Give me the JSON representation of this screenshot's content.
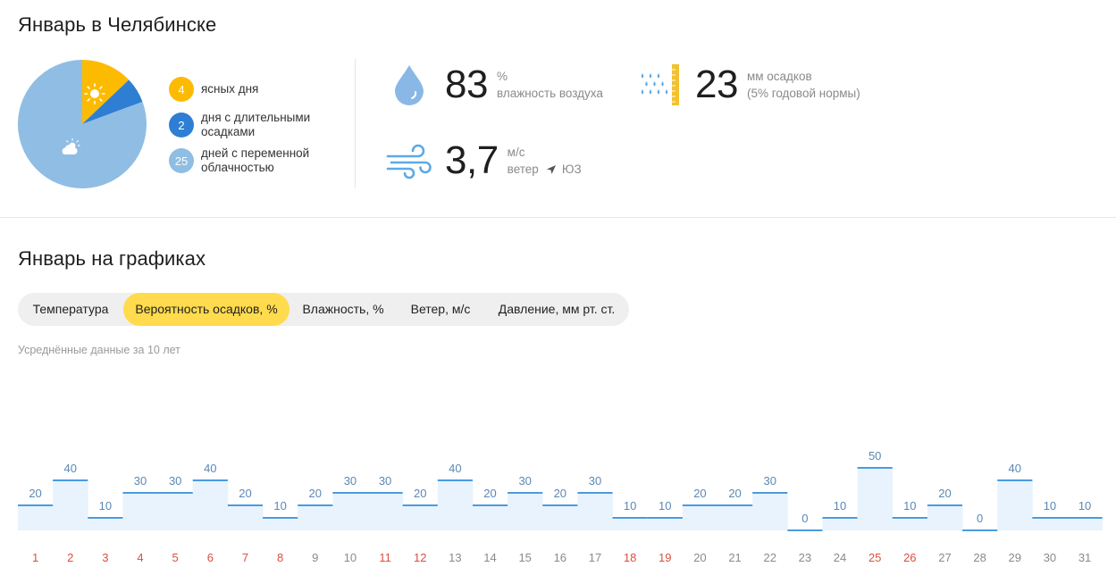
{
  "header": {
    "title": "Январь в Челябинске"
  },
  "summary": {
    "legend": [
      {
        "count": "4",
        "label": "ясных дня",
        "color": "#fcbb00"
      },
      {
        "count": "2",
        "label": "дня с длительными осадками",
        "color": "#2e7fd3"
      },
      {
        "count": "25",
        "label": "дней с переменной облачностью",
        "color": "#90bde3"
      }
    ],
    "pie_icons": {
      "clear": "sun-icon",
      "cloudy": "partly-cloudy-icon"
    }
  },
  "stats": {
    "humidity": {
      "value": "83",
      "unit": "%",
      "label": "влажность воздуха",
      "icon": "water-drop-icon"
    },
    "precipitation": {
      "value": "23",
      "unit": "мм осадков",
      "label": "(5% годовой нормы)",
      "icon": "rain-gauge-icon"
    },
    "wind": {
      "value": "3,7",
      "unit": "м/с",
      "label": "ветер",
      "direction": "ЮЗ",
      "icon": "wind-icon"
    }
  },
  "charts_section": {
    "title": "Январь на графиках",
    "tabs": [
      {
        "label": "Температура",
        "active": false
      },
      {
        "label": "Вероятность осадков, %",
        "active": true
      },
      {
        "label": "Влажность, %",
        "active": false
      },
      {
        "label": "Ветер, м/с",
        "active": false
      },
      {
        "label": "Давление, мм рт. ст.",
        "active": false
      }
    ],
    "subtitle": "Усреднённые данные за 10 лет"
  },
  "colors": {
    "accent": "#ffdb4d",
    "step_line": "#4a9be0",
    "step_fill": "#e8f3fd",
    "weekend_text": "#d9503f",
    "weekday_text": "#8a8a8a"
  },
  "chart_data": {
    "type": "area",
    "title": "",
    "xlabel": "",
    "ylabel": "",
    "x": [
      "1",
      "2",
      "3",
      "4",
      "5",
      "6",
      "7",
      "8",
      "9",
      "10",
      "11",
      "12",
      "13",
      "14",
      "15",
      "16",
      "17",
      "18",
      "19",
      "20",
      "21",
      "22",
      "23",
      "24",
      "25",
      "26",
      "27",
      "28",
      "29",
      "30",
      "31"
    ],
    "weekend": [
      1,
      2,
      3,
      4,
      5,
      6,
      7,
      8,
      11,
      12,
      18,
      19,
      25,
      26
    ],
    "series": [
      {
        "values": [
          20,
          40,
          10,
          30,
          30,
          40,
          20,
          10,
          20,
          30,
          30,
          20,
          40,
          20,
          30,
          20,
          30,
          10,
          10,
          20,
          20,
          30,
          0,
          10,
          50,
          10,
          20,
          0,
          40,
          10,
          10
        ]
      }
    ],
    "ylim": [
      0,
      50
    ],
    "grid": false,
    "legend": "none"
  }
}
